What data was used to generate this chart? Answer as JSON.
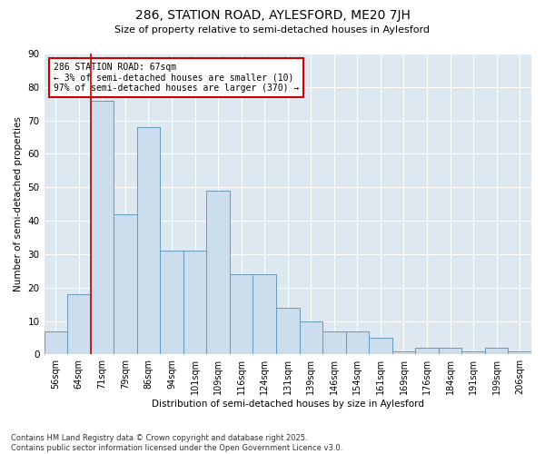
{
  "title_line1": "286, STATION ROAD, AYLESFORD, ME20 7JH",
  "title_line2": "Size of property relative to semi-detached houses in Aylesford",
  "xlabel": "Distribution of semi-detached houses by size in Aylesford",
  "ylabel": "Number of semi-detached properties",
  "categories": [
    "56sqm",
    "64sqm",
    "71sqm",
    "79sqm",
    "86sqm",
    "94sqm",
    "101sqm",
    "109sqm",
    "116sqm",
    "124sqm",
    "131sqm",
    "139sqm",
    "146sqm",
    "154sqm",
    "161sqm",
    "169sqm",
    "176sqm",
    "184sqm",
    "191sqm",
    "199sqm",
    "206sqm"
  ],
  "values": [
    7,
    18,
    76,
    42,
    68,
    31,
    31,
    49,
    24,
    24,
    14,
    10,
    7,
    7,
    5,
    1,
    2,
    2,
    1,
    2,
    1
  ],
  "bar_color": "#ccdded",
  "bar_edge_color": "#6699bb",
  "vline_x": 1.5,
  "annotation_text": "286 STATION ROAD: 67sqm\n← 3% of semi-detached houses are smaller (10)\n97% of semi-detached houses are larger (370) →",
  "annotation_box_color": "#ffffff",
  "annotation_box_edge": "#cc0000",
  "vline_color": "#cc0000",
  "ylim": [
    0,
    90
  ],
  "yticks": [
    0,
    10,
    20,
    30,
    40,
    50,
    60,
    70,
    80,
    90
  ],
  "footnote": "Contains HM Land Registry data © Crown copyright and database right 2025.\nContains public sector information licensed under the Open Government Licence v3.0.",
  "bg_color": "#ffffff",
  "plot_bg_color": "#dde8f0"
}
